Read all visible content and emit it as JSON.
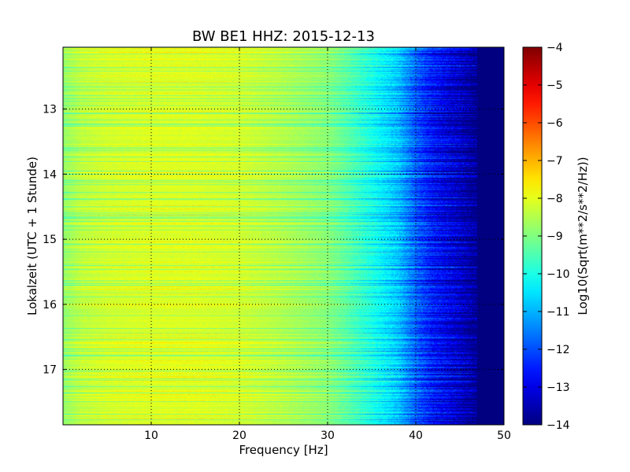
{
  "chart_data": {
    "type": "heatmap",
    "title": "BW BE1 HHZ: 2015-12-13",
    "xlabel": "Frequency [Hz]",
    "ylabel": "Lokalzeit (UTC + 1 Stunde)",
    "xlim": [
      0,
      50
    ],
    "ylim": [
      12.05,
      17.85
    ],
    "y_inverted": true,
    "x_ticks": [
      10,
      20,
      30,
      40,
      50
    ],
    "y_ticks": [
      13,
      14,
      15,
      16,
      17
    ],
    "grid": true,
    "colorbar": {
      "label": "Log10(Sqrt(m**2/s**2/Hz))",
      "min": -14,
      "max": -4,
      "ticks": [
        -4,
        -5,
        -6,
        -7,
        -8,
        -9,
        -10,
        -11,
        -12,
        -13,
        -14
      ],
      "colormap": "jet"
    },
    "spectral_profile": {
      "frequency_hz": [
        0,
        2,
        5,
        10,
        15,
        20,
        25,
        30,
        32,
        35,
        38,
        40,
        42,
        45,
        47,
        50
      ],
      "log10_amplitude": [
        -8.8,
        -8.4,
        -8.2,
        -8.1,
        -8.1,
        -8.2,
        -8.5,
        -8.9,
        -9.3,
        -10.0,
        -10.8,
        -11.8,
        -12.6,
        -13.3,
        -14.0,
        -14.0
      ]
    }
  }
}
